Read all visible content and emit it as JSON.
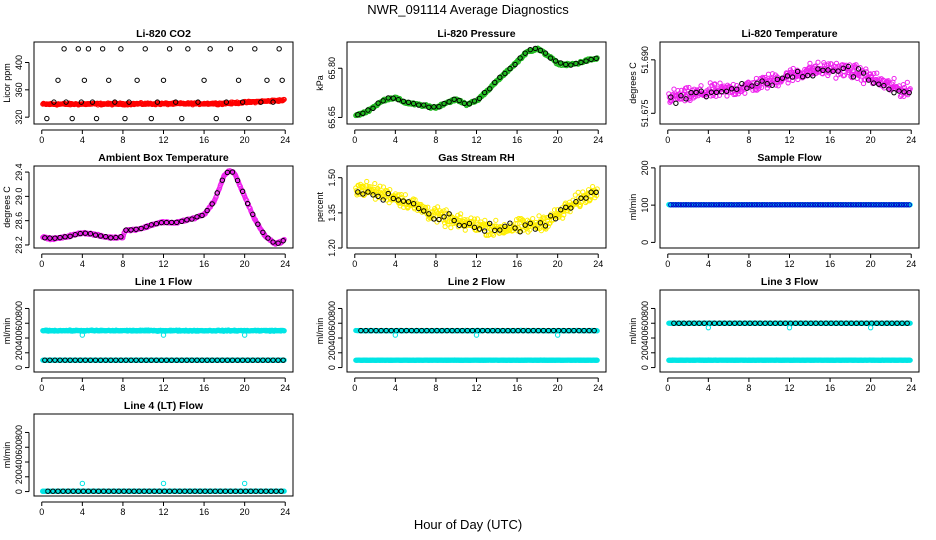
{
  "figure": {
    "title": "NWR_091114  Average Diagnostics",
    "xlabel": "Hour of Day (UTC)"
  },
  "chart_data": [
    {
      "type": "scatter",
      "title": "Li-820 CO2",
      "ylabel": "Licor ppm",
      "xlim": [
        0,
        24
      ],
      "ylim": [
        310,
        430
      ],
      "xticks": [
        "0",
        "4",
        "8",
        "12",
        "16",
        "20",
        "24"
      ],
      "yticks": [
        "320",
        "360",
        "400"
      ],
      "series": [
        {
          "name": "dense",
          "color": "#ff0000",
          "kind": "band",
          "x": [
            0,
            18,
            24
          ],
          "y": [
            339,
            340,
            345
          ],
          "noise": 1.5
        },
        {
          "name": "hourly",
          "color": "#000000",
          "kind": "points",
          "x": [
            0.5,
            1.2,
            1.6,
            2.2,
            2.4,
            3,
            3.6,
            3.9,
            4.2,
            4.6,
            5,
            5.4,
            6,
            6.6,
            7.2,
            7.8,
            8.2,
            8.6,
            9.4,
            10.2,
            10.8,
            11.4,
            12,
            12.6,
            13.2,
            13.8,
            14.4,
            15.4,
            16,
            16.6,
            17.2,
            18.2,
            18.6,
            19.4,
            19.8,
            20.4,
            21,
            21.6,
            22.2,
            22.8,
            23.4,
            23.7
          ],
          "y": [
            318,
            342,
            374,
            420,
            342,
            318,
            420,
            342,
            374,
            420,
            342,
            318,
            420,
            374,
            342,
            420,
            318,
            342,
            374,
            420,
            318,
            342,
            374,
            420,
            342,
            318,
            420,
            342,
            374,
            420,
            318,
            342,
            420,
            374,
            342,
            318,
            420,
            342,
            374,
            342,
            420,
            374
          ]
        }
      ]
    },
    {
      "type": "scatter",
      "title": "Li-820 Pressure",
      "ylabel": "kPa",
      "xlim": [
        0,
        24
      ],
      "ylim": [
        65.63,
        65.88
      ],
      "xticks": [
        "0",
        "4",
        "8",
        "12",
        "16",
        "20",
        "24"
      ],
      "yticks": [
        "65.65",
        "65.80"
      ],
      "series": [
        {
          "name": "dense",
          "color": "#22bb22",
          "kind": "curve",
          "x": [
            0,
            1,
            2,
            3,
            4,
            5,
            6,
            7,
            8,
            9,
            10,
            11,
            12,
            13,
            14,
            15,
            16,
            17,
            18,
            19,
            20,
            21,
            22,
            23,
            24
          ],
          "y": [
            65.655,
            65.665,
            65.685,
            65.705,
            65.71,
            65.695,
            65.69,
            65.685,
            65.68,
            65.695,
            65.705,
            65.69,
            65.7,
            65.73,
            65.76,
            65.79,
            65.82,
            65.85,
            65.86,
            65.84,
            65.815,
            65.81,
            65.815,
            65.825,
            65.83
          ],
          "noise": 0.004
        },
        {
          "name": "hourly",
          "color": "#000000",
          "kind": "curve-points",
          "step": 0.5,
          "noise": 0.004
        }
      ]
    },
    {
      "type": "scatter",
      "title": "Li-820 Temperature",
      "ylabel": "degrees C",
      "xlim": [
        0,
        24
      ],
      "ylim": [
        51.672,
        51.695
      ],
      "xticks": [
        "0",
        "4",
        "8",
        "12",
        "16",
        "20",
        "24"
      ],
      "yticks": [
        "51.675",
        "51.690"
      ],
      "series": [
        {
          "name": "dense",
          "color": "#ee22ee",
          "kind": "curve",
          "x": [
            0,
            2,
            4,
            6,
            8,
            10,
            12,
            14,
            16,
            18,
            20,
            22,
            24
          ],
          "y": [
            51.6795,
            51.68,
            51.681,
            51.6815,
            51.6825,
            51.684,
            51.6855,
            51.687,
            51.6875,
            51.687,
            51.685,
            51.6825,
            51.681
          ],
          "noise": 0.0022
        },
        {
          "name": "hourly",
          "color": "#000000",
          "kind": "curve-points",
          "step": 0.5,
          "noise": 0.0018
        }
      ]
    },
    {
      "type": "scatter",
      "title": "Ambient Box Temperature",
      "ylabel": "degrees C",
      "xlim": [
        0,
        24
      ],
      "ylim": [
        28.15,
        29.5
      ],
      "xticks": [
        "0",
        "4",
        "8",
        "12",
        "16",
        "20",
        "24"
      ],
      "yticks": [
        "28.2",
        "28.6",
        "29.0",
        "29.4"
      ],
      "series": [
        {
          "name": "dense",
          "color": "#ee22ee",
          "kind": "curve",
          "x": [
            0,
            1,
            2,
            3,
            4,
            5,
            6,
            7,
            8,
            8.2,
            9,
            10,
            11,
            12,
            13,
            14,
            15,
            16,
            17,
            18,
            18.5,
            19,
            20,
            21,
            22,
            23,
            23.6,
            24
          ],
          "y": [
            28.33,
            28.3,
            28.32,
            28.36,
            28.4,
            28.38,
            28.34,
            28.32,
            28.33,
            28.44,
            28.45,
            28.48,
            28.54,
            28.58,
            28.56,
            28.6,
            28.64,
            28.7,
            28.92,
            29.35,
            29.42,
            29.38,
            29.0,
            28.62,
            28.35,
            28.22,
            28.25,
            28.3
          ],
          "noise": 0.015
        },
        {
          "name": "hourly",
          "color": "#000000",
          "kind": "curve-points",
          "step": 0.5,
          "noise": 0.01
        }
      ]
    },
    {
      "type": "scatter",
      "title": "Gas Stream RH",
      "ylabel": "percent",
      "xlim": [
        0,
        24
      ],
      "ylim": [
        1.2,
        1.55
      ],
      "xticks": [
        "0",
        "4",
        "8",
        "12",
        "16",
        "20",
        "24"
      ],
      "yticks": [
        "1.20",
        "1.35",
        "1.50"
      ],
      "series": [
        {
          "name": "dense",
          "color": "#ffee00",
          "kind": "curve",
          "x": [
            0,
            2,
            4,
            6,
            8,
            10,
            12,
            14,
            16,
            18,
            20,
            22,
            24
          ],
          "y": [
            1.46,
            1.44,
            1.42,
            1.38,
            1.34,
            1.31,
            1.3,
            1.28,
            1.29,
            1.3,
            1.34,
            1.4,
            1.45
          ],
          "noise": 0.035
        },
        {
          "name": "hourly",
          "color": "#000000",
          "kind": "curve-points",
          "step": 0.5,
          "noise": 0.025
        }
      ]
    },
    {
      "type": "scatter",
      "title": "Sample Flow",
      "ylabel": "ml/min",
      "xlim": [
        0,
        24
      ],
      "ylim": [
        -15,
        205
      ],
      "xticks": [
        "0",
        "4",
        "8",
        "12",
        "16",
        "20",
        "24"
      ],
      "yticks": [
        "0",
        "100",
        "200"
      ],
      "series": [
        {
          "name": "dense",
          "color": "#00e5e5",
          "kind": "band",
          "x": [
            0,
            24
          ],
          "y": [
            101,
            101
          ],
          "noise": 0.5
        },
        {
          "name": "hourly",
          "color": "#0000cc",
          "kind": "line-points",
          "y": 101,
          "step": 0.25
        }
      ]
    },
    {
      "type": "scatter",
      "title": "Line 1 Flow",
      "ylabel": "ml/min",
      "xlim": [
        0,
        24
      ],
      "ylim": [
        -60,
        1050
      ],
      "xticks": [
        "0",
        "4",
        "8",
        "12",
        "16",
        "20",
        "24"
      ],
      "yticks": [
        "0",
        "200",
        "400",
        "600",
        "800"
      ],
      "series": [
        {
          "name": "dense",
          "color": "#00e5e5",
          "kind": "band",
          "x": [
            0,
            24
          ],
          "y": [
            500,
            500
          ],
          "noise": 8
        },
        {
          "name": "low",
          "color": "#00e5e5",
          "kind": "band",
          "x": [
            0,
            24
          ],
          "y": [
            100,
            100
          ],
          "noise": 2
        },
        {
          "name": "hourly",
          "color": "#000000",
          "kind": "line-points",
          "y": 100,
          "step": 0.5
        },
        {
          "name": "spikes",
          "color": "#00e5e5",
          "kind": "points",
          "x": [
            4,
            12,
            20
          ],
          "y": [
            440,
            440,
            440
          ]
        }
      ]
    },
    {
      "type": "scatter",
      "title": "Line 2 Flow",
      "ylabel": "ml/min",
      "xlim": [
        0,
        24
      ],
      "ylim": [
        -60,
        1050
      ],
      "xticks": [
        "0",
        "4",
        "8",
        "12",
        "16",
        "20",
        "24"
      ],
      "yticks": [
        "0",
        "200",
        "400",
        "600",
        "800"
      ],
      "series": [
        {
          "name": "dense",
          "color": "#00e5e5",
          "kind": "band",
          "x": [
            0,
            24
          ],
          "y": [
            100,
            100
          ],
          "noise": 2
        },
        {
          "name": "high",
          "color": "#00e5e5",
          "kind": "band",
          "x": [
            0,
            24
          ],
          "y": [
            500,
            500
          ],
          "noise": 4
        },
        {
          "name": "hourly",
          "color": "#000000",
          "kind": "line-points",
          "y": 500,
          "step": 0.5,
          "start": 0.6
        },
        {
          "name": "spikes",
          "color": "#00e5e5",
          "kind": "points",
          "x": [
            4,
            12,
            20
          ],
          "y": [
            440,
            440,
            440
          ]
        }
      ]
    },
    {
      "type": "scatter",
      "title": "Line 3 Flow",
      "ylabel": "ml/min",
      "xlim": [
        0,
        24
      ],
      "ylim": [
        -60,
        1050
      ],
      "xticks": [
        "0",
        "4",
        "8",
        "12",
        "16",
        "20",
        "24"
      ],
      "yticks": [
        "0",
        "200",
        "400",
        "600",
        "800"
      ],
      "series": [
        {
          "name": "dense",
          "color": "#00e5e5",
          "kind": "band",
          "x": [
            0,
            24
          ],
          "y": [
            100,
            100
          ],
          "noise": 2
        },
        {
          "name": "high",
          "color": "#00e5e5",
          "kind": "band",
          "x": [
            0,
            24
          ],
          "y": [
            600,
            600
          ],
          "noise": 3
        },
        {
          "name": "hourly",
          "color": "#000000",
          "kind": "line-points",
          "y": 600,
          "step": 0.5,
          "start": 0.6
        },
        {
          "name": "spikes",
          "color": "#00e5e5",
          "kind": "points",
          "x": [
            4,
            12,
            20
          ],
          "y": [
            540,
            540,
            540
          ]
        }
      ]
    },
    {
      "type": "scatter",
      "title": "Line 4 (LT) Flow",
      "ylabel": "ml/min",
      "xlim": [
        0,
        24
      ],
      "ylim": [
        -60,
        1050
      ],
      "xticks": [
        "0",
        "4",
        "8",
        "12",
        "16",
        "20",
        "24"
      ],
      "yticks": [
        "0",
        "200",
        "400",
        "600",
        "800"
      ],
      "series": [
        {
          "name": "dense",
          "color": "#00e5e5",
          "kind": "band",
          "x": [
            0,
            24
          ],
          "y": [
            5,
            5
          ],
          "noise": 2
        },
        {
          "name": "hourly",
          "color": "#000000",
          "kind": "line-points",
          "y": 5,
          "step": 0.5,
          "start": 0.6
        },
        {
          "name": "spikes",
          "color": "#00e5e5",
          "kind": "points",
          "x": [
            0.1,
            4,
            12,
            20
          ],
          "y": [
            5,
            110,
            110,
            110
          ]
        }
      ]
    }
  ]
}
